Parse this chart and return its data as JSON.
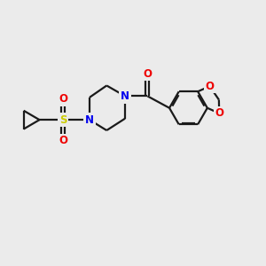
{
  "background_color": "#ebebeb",
  "bond_color": "#1a1a1a",
  "bond_width": 1.6,
  "atom_colors": {
    "N": "#0000ee",
    "O": "#ee0000",
    "S": "#cccc00",
    "C": "#1a1a1a"
  },
  "font_size_atom": 8.5
}
